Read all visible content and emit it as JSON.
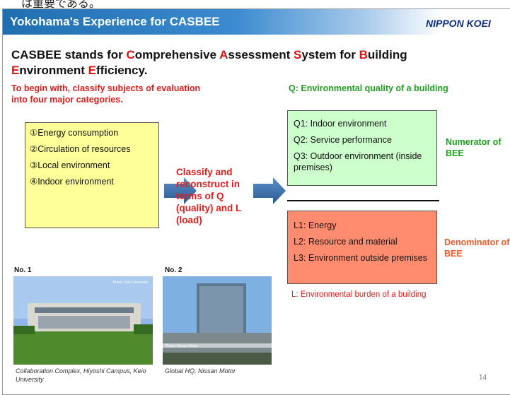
{
  "top_text": "は重要である。",
  "header": {
    "title": "Yokohama's Experience for CASBEE",
    "brand": "NIPPON KOEI"
  },
  "title_parts": [
    {
      "text": "CASBEE stands for ",
      "emphasis": false
    },
    {
      "text": "C",
      "emphasis": true
    },
    {
      "text": "omprehensive ",
      "emphasis": false
    },
    {
      "text": "A",
      "emphasis": true
    },
    {
      "text": "ssessment ",
      "emphasis": false
    },
    {
      "text": "S",
      "emphasis": true
    },
    {
      "text": "ystem for ",
      "emphasis": false
    },
    {
      "text": "B",
      "emphasis": true
    },
    {
      "text": "uilding ",
      "emphasis": false
    },
    {
      "text": "E",
      "emphasis": true
    },
    {
      "text": "nvironment ",
      "emphasis": false
    },
    {
      "text": "E",
      "emphasis": true
    },
    {
      "text": "fficiency.",
      "emphasis": false
    }
  ],
  "intro": "To begin with, classify subjects of evaluation into four major categories.",
  "categories": [
    "①Energy consumption",
    "②Circulation of resources",
    "③Local environment",
    "④Indoor environment"
  ],
  "middle": "Classify and reconstruct in terms of Q (quality) and L (load)",
  "quality": {
    "heading": "Q: Environmental quality of a building",
    "items": [
      "Q1: Indoor environment",
      "Q2: Service performance",
      "Q3: Outdoor environment (inside premises)"
    ],
    "side": "Numerator of BEE"
  },
  "load": {
    "items": [
      "L1: Energy",
      "L2: Resource and material",
      "L3: Environment outside premises"
    ],
    "side": "Denominator of BEE",
    "note": "L: Environmental burden of a building"
  },
  "photos": [
    {
      "label": "No. 1",
      "credit": "Photo: Keio University",
      "caption": "Collaboration Complex, Hiyoshi Campus, Keio University"
    },
    {
      "label": "No. 2",
      "credit": "Photo: Nissan Motor",
      "caption": "Global HQ, Nissan Motor"
    }
  ],
  "page_number": "14"
}
